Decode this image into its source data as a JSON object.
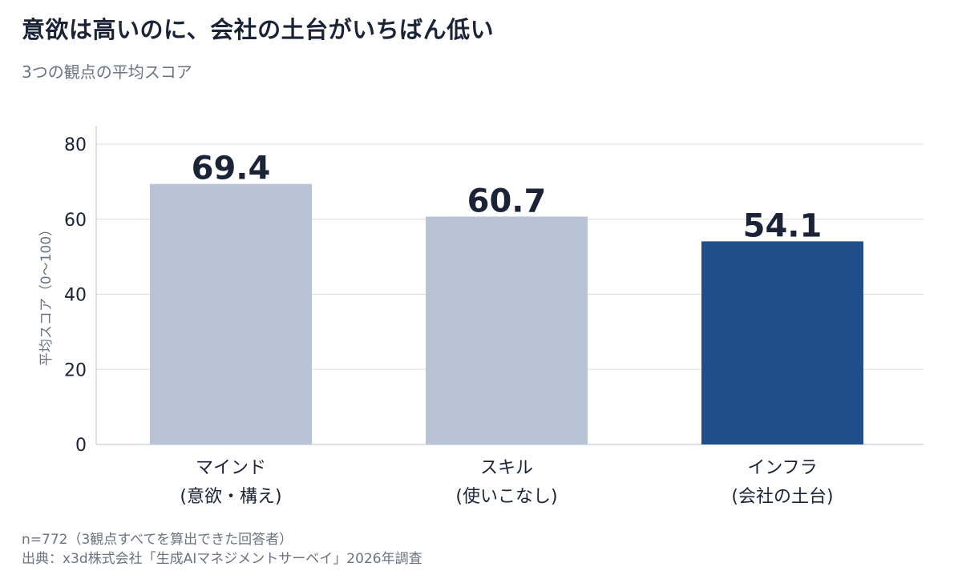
{
  "header": {
    "title": "意欲は高いのに、会社の土台がいちばん低い",
    "subtitle": "3つの観点の平均スコア"
  },
  "chart_data": {
    "type": "bar",
    "categories": [
      [
        "マインド",
        "(意欲・構え)"
      ],
      [
        "スキル",
        "(使いこなし)"
      ],
      [
        "インフラ",
        "(会社の土台)"
      ]
    ],
    "values": [
      69.4,
      60.7,
      54.1
    ],
    "value_labels": [
      "69.4",
      "60.7",
      "54.1"
    ],
    "ylabel": "平均スコア（0〜100）",
    "ylim": [
      0,
      80
    ],
    "yticks": [
      0,
      20,
      40,
      60,
      80
    ],
    "grid": true,
    "legend": "none",
    "colors": [
      "#b8c4d6",
      "#b8c4d6",
      "#1f4e89"
    ]
  },
  "footer": {
    "sample": "n=772（3観点すべてを算出できた回答者）",
    "source": "出典：x3d株式会社「生成AIマネジメントサーベイ」2026年調査"
  },
  "style": {
    "grid_color": "#d9dee6",
    "axis_color": "#c7cdd6",
    "text_dark": "#1b2337",
    "text_muted": "#6b7280"
  }
}
